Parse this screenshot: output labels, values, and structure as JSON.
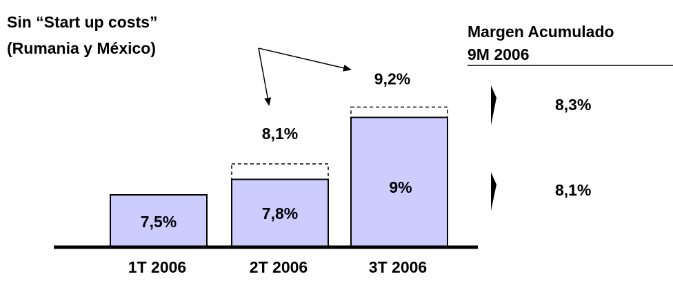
{
  "chart_data": {
    "type": "bar",
    "categories": [
      "1T 2006",
      "2T 2006",
      "3T 2006"
    ],
    "series": [
      {
        "values": [
          7.5,
          7.8,
          9.0
        ]
      },
      {
        "values": [
          null,
          8.1,
          9.2
        ]
      }
    ],
    "value_labels": [
      "7,5%",
      "7,8%",
      "9%"
    ],
    "without_startup_labels": [
      null,
      "8,1%",
      "9,2%"
    ],
    "annotation": "Sin “Start up costs”\n(Rumania y México)",
    "side_panel": {
      "title_line1": "Margen Acumulado",
      "title_line2": "9M 2006",
      "values": [
        "8,3%",
        "8,1%"
      ]
    },
    "colors": {
      "bar_fill": "#ccccff",
      "bar_stroke": "#000000"
    },
    "ylim": [
      0,
      10
    ]
  }
}
